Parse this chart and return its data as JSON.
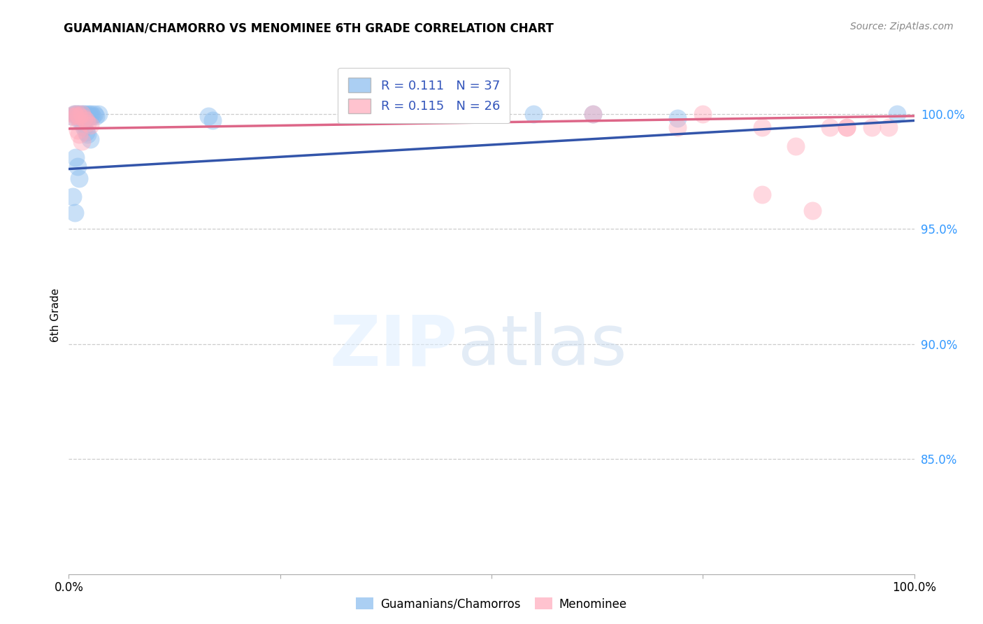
{
  "title": "GUAMANIAN/CHAMORRO VS MENOMINEE 6TH GRADE CORRELATION CHART",
  "source": "Source: ZipAtlas.com",
  "ylabel": "6th Grade",
  "ytick_labels": [
    "100.0%",
    "95.0%",
    "90.0%",
    "85.0%"
  ],
  "ytick_values": [
    1.0,
    0.95,
    0.9,
    0.85
  ],
  "xlim": [
    0.0,
    1.0
  ],
  "ylim": [
    0.8,
    1.025
  ],
  "legend_blue_R": "0.111",
  "legend_blue_N": "37",
  "legend_pink_R": "0.115",
  "legend_pink_N": "26",
  "blue_color": "#88BBEE",
  "pink_color": "#FFAABB",
  "blue_line_color": "#3355AA",
  "pink_line_color": "#DD6688",
  "blue_scatter_x": [
    0.003,
    0.006,
    0.008,
    0.01,
    0.012,
    0.013,
    0.015,
    0.016,
    0.018,
    0.019,
    0.02,
    0.021,
    0.022,
    0.024,
    0.025,
    0.026,
    0.028,
    0.03,
    0.032,
    0.035,
    0.013,
    0.016,
    0.018,
    0.02,
    0.022,
    0.025,
    0.008,
    0.01,
    0.012,
    0.005,
    0.007,
    0.165,
    0.17,
    0.55,
    0.62,
    0.72,
    0.98
  ],
  "blue_scatter_y": [
    0.999,
    1.0,
    1.0,
    1.0,
    1.0,
    0.999,
    1.0,
    0.999,
    1.0,
    0.999,
    1.0,
    0.999,
    0.999,
    1.0,
    0.999,
    1.0,
    0.999,
    1.0,
    0.999,
    1.0,
    0.997,
    0.996,
    0.994,
    0.992,
    0.991,
    0.989,
    0.981,
    0.977,
    0.972,
    0.964,
    0.957,
    0.999,
    0.997,
    1.0,
    1.0,
    0.998,
    1.0
  ],
  "pink_scatter_x": [
    0.003,
    0.006,
    0.008,
    0.01,
    0.012,
    0.015,
    0.018,
    0.02,
    0.022,
    0.025,
    0.01,
    0.012,
    0.015,
    0.33,
    0.62,
    0.72,
    0.75,
    0.82,
    0.86,
    0.92,
    0.95,
    0.97,
    0.82,
    0.88,
    0.9,
    0.92
  ],
  "pink_scatter_y": [
    0.999,
    1.0,
    0.999,
    1.0,
    0.999,
    1.0,
    0.998,
    0.997,
    0.996,
    0.995,
    0.993,
    0.991,
    0.988,
    1.0,
    1.0,
    0.994,
    1.0,
    0.994,
    0.986,
    0.994,
    0.994,
    0.994,
    0.965,
    0.958,
    0.994,
    0.994
  ],
  "blue_trend_x0": 0.0,
  "blue_trend_x1": 1.0,
  "blue_trend_y0": 0.976,
  "blue_trend_y1": 0.997,
  "pink_trend_x0": 0.0,
  "pink_trend_x1": 1.0,
  "pink_trend_y0": 0.9935,
  "pink_trend_y1": 0.999
}
